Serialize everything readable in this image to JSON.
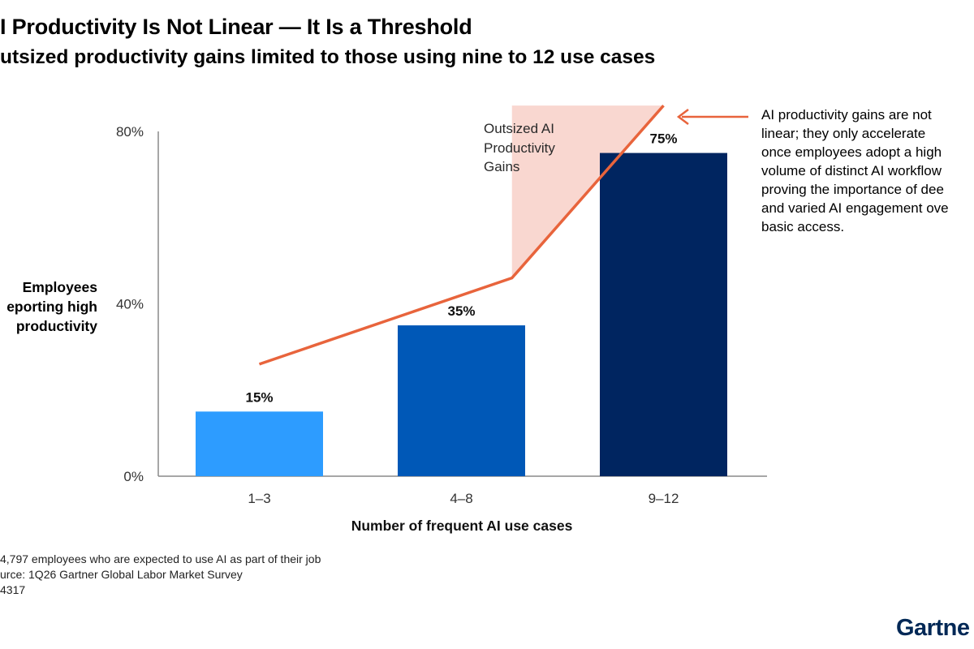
{
  "title": "I Productivity Is Not Linear — It Is a Threshold",
  "subtitle": "utsized productivity gains limited to those using nine to 12 use cases",
  "chart_data": {
    "type": "bar",
    "categories": [
      "1–3",
      "4–8",
      "9–12"
    ],
    "values": [
      15,
      35,
      75
    ],
    "value_labels": [
      "15%",
      "35%",
      "75%"
    ],
    "bar_colors": [
      "#2d9cff",
      "#0058b7",
      "#002560"
    ],
    "ylim": [
      0,
      80
    ],
    "yticks": [
      0,
      40,
      80
    ],
    "ytick_labels": [
      "0%",
      "40%",
      "80%"
    ],
    "xlabel": "Number of frequent AI use cases",
    "ylabel_lines": [
      "Employees",
      "eporting high",
      "productivity"
    ],
    "trend_line": {
      "color": "#e8643c",
      "points": [
        [
          0,
          26
        ],
        [
          1.25,
          46
        ],
        [
          2,
          86
        ]
      ]
    },
    "shaded_region": {
      "color": "#f9d7d0",
      "label_lines": [
        "Outsized AI",
        "Productivity",
        "Gains"
      ]
    },
    "annotation_lines": [
      "AI productivity gains are not",
      "linear; they only accelerate",
      "once employees adopt a high",
      "volume of distinct AI workflow",
      "proving the importance of dee",
      "and varied AI engagement ove",
      "basic access."
    ],
    "grid": false,
    "legend": "none"
  },
  "footnotes": [
    "4,797 employees who are expected to use AI as part of their job",
    "urce: 1Q26 Gartner Global Labor Market Survey",
    "4317"
  ],
  "brand": "Gartne"
}
